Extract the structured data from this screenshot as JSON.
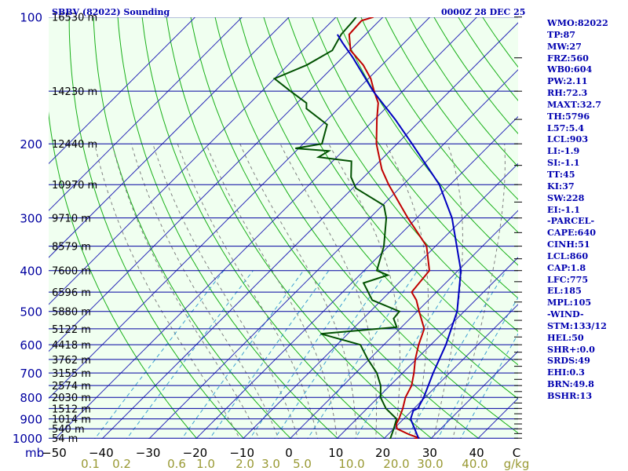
{
  "header": {
    "title": "SBBV (82022) Sounding",
    "time": "0000Z 28 DEC 25"
  },
  "sidebar": [
    "WMO:82022",
    "TP:87",
    "MW:27",
    "FRZ:560",
    "WB0:604",
    "PW:2.11",
    "RH:72.3",
    "MAXT:32.7",
    "TH:5796",
    "L57:5.4",
    "LCL:903",
    "LI:-1.9",
    "SI:-1.1",
    "TT:45",
    "KI:37",
    "SW:228",
    "EI:-1.1",
    "-PARCEL-",
    "CAPE:640",
    "CINH:51",
    "LCL:860",
    "CAP:1.8",
    "LFC:775",
    "EL:185",
    "MPL:105",
    "-WIND-",
    "STM:133/12",
    "HEL:50",
    "SHR+:0.0",
    "SRDS:49",
    "EHI:0.3",
    "BRN:49.8",
    "BSHR:13"
  ],
  "chart_data": {
    "type": "line",
    "title": "SBBV (82022) Sounding",
    "xlabel": "",
    "ylabel": "mb",
    "colors": {
      "background": "#f0fff0",
      "isobar": "#0000a0",
      "isotherm": "#2a2ab8",
      "dry_adiabat": "#18b018",
      "moist_adiabat": "#808080",
      "mixing_ratio": "#3aa0d0",
      "temperature": "#c00000",
      "dewpoint": "#005000",
      "parcel": "#0000c0",
      "axis_text": "#000000",
      "mixing_text": "#999933",
      "wind": "#000000"
    },
    "pressure_ticks": [
      "100",
      "200",
      "300",
      "400",
      "500",
      "600",
      "700",
      "800",
      "900",
      "1000"
    ],
    "pressure_tick_values": [
      100,
      200,
      300,
      400,
      500,
      600,
      700,
      800,
      900,
      1000
    ],
    "temperature_ticks": [
      "-50",
      "-40",
      "-30",
      "-20",
      "-10",
      "0",
      "10",
      "20",
      "30",
      "40",
      "C"
    ],
    "temperature_tick_values": [
      -50,
      -40,
      -30,
      -20,
      -10,
      0,
      10,
      20,
      30,
      40
    ],
    "mixing_ratio_ticks": [
      "0.1",
      "0.2",
      "0.6",
      "1.0",
      "2.0",
      "3.0",
      "5.0",
      "10.0",
      "20.0",
      "30.0",
      "40.0",
      "g/kg"
    ],
    "mixing_ratio_values": [
      0.1,
      0.2,
      0.6,
      1.0,
      2.0,
      3.0,
      5.0,
      10.0,
      20.0,
      30.0,
      40.0
    ],
    "xlim": [
      -50,
      50
    ],
    "ylim": [
      1000,
      100
    ],
    "y_scale": "log",
    "heights": [
      {
        "p": 100,
        "label": "16530 m"
      },
      {
        "p": 150,
        "label": "14230 m"
      },
      {
        "p": 200,
        "label": "12440 m"
      },
      {
        "p": 250,
        "label": "10970 m"
      },
      {
        "p": 300,
        "label": "9710 m"
      },
      {
        "p": 350,
        "label": "8579 m"
      },
      {
        "p": 400,
        "label": "7600 m"
      },
      {
        "p": 450,
        "label": "6596 m"
      },
      {
        "p": 500,
        "label": "5880 m"
      },
      {
        "p": 550,
        "label": "5122 m"
      },
      {
        "p": 600,
        "label": "4418 m"
      },
      {
        "p": 650,
        "label": "3762 m"
      },
      {
        "p": 700,
        "label": "3155 m"
      },
      {
        "p": 750,
        "label": "2574 m"
      },
      {
        "p": 800,
        "label": "2030 m"
      },
      {
        "p": 850,
        "label": "1512 m"
      },
      {
        "p": 900,
        "label": "1014 m"
      },
      {
        "p": 950,
        "label": "540 m"
      },
      {
        "p": 1000,
        "label": "54 m"
      }
    ],
    "series": [
      {
        "name": "temperature",
        "points": [
          [
            1004,
            26.5
          ],
          [
            1000,
            27.5
          ],
          [
            980,
            24.5
          ],
          [
            950,
            20.7
          ],
          [
            925,
            19.5
          ],
          [
            900,
            19
          ],
          [
            850,
            17.6
          ],
          [
            800,
            15.8
          ],
          [
            750,
            14.6
          ],
          [
            700,
            12.4
          ],
          [
            650,
            9.8
          ],
          [
            600,
            7.4
          ],
          [
            550,
            5.2
          ],
          [
            500,
            0.4
          ],
          [
            470,
            -2.6
          ],
          [
            450,
            -5.3
          ],
          [
            400,
            -6.1
          ],
          [
            350,
            -11.9
          ],
          [
            300,
            -21.9
          ],
          [
            250,
            -33.1
          ],
          [
            230,
            -37.8
          ],
          [
            200,
            -44.4
          ],
          [
            175,
            -49.5
          ],
          [
            160,
            -52.7
          ],
          [
            150,
            -56.1
          ],
          [
            140,
            -59.5
          ],
          [
            130,
            -64
          ],
          [
            120,
            -69.8
          ],
          [
            110,
            -73.5
          ],
          [
            102,
            -73.8
          ],
          [
            100,
            -72
          ]
        ]
      },
      {
        "name": "dewpoint",
        "points": [
          [
            1004,
            21.2
          ],
          [
            1000,
            21.3
          ],
          [
            950,
            20
          ],
          [
            900,
            18.5
          ],
          [
            850,
            14
          ],
          [
            800,
            10.5
          ],
          [
            750,
            8
          ],
          [
            700,
            4.5
          ],
          [
            650,
            -0.3
          ],
          [
            600,
            -5
          ],
          [
            565,
            -15.8
          ],
          [
            545,
            -1
          ],
          [
            520,
            -3.5
          ],
          [
            500,
            -3.8
          ],
          [
            470,
            -12
          ],
          [
            428,
            -17.5
          ],
          [
            410,
            -14
          ],
          [
            400,
            -17.3
          ],
          [
            350,
            -21
          ],
          [
            300,
            -26.5
          ],
          [
            280,
            -29.7
          ],
          [
            255,
            -39.3
          ],
          [
            240,
            -42.7
          ],
          [
            220,
            -46
          ],
          [
            215,
            -53.9
          ],
          [
            208,
            -53
          ],
          [
            205,
            -60.7
          ],
          [
            200,
            -56
          ],
          [
            180,
            -59
          ],
          [
            165,
            -66.8
          ],
          [
            160,
            -68
          ],
          [
            150,
            -73.9
          ],
          [
            140,
            -80
          ],
          [
            130,
            -76
          ],
          [
            120,
            -73.7
          ],
          [
            110,
            -75.2
          ],
          [
            103,
            -75.5
          ],
          [
            100,
            -75.7
          ]
        ]
      },
      {
        "name": "parcel",
        "points": [
          [
            1004,
            27.5
          ],
          [
            900,
            21.5
          ],
          [
            860,
            20.3
          ],
          [
            850,
            20.8
          ],
          [
            800,
            19.7
          ],
          [
            700,
            16.5
          ],
          [
            600,
            13.2
          ],
          [
            500,
            8.5
          ],
          [
            400,
            0.6
          ],
          [
            300,
            -12.5
          ],
          [
            250,
            -22.3
          ],
          [
            200,
            -36.8
          ],
          [
            175,
            -45.6
          ],
          [
            150,
            -56.3
          ],
          [
            125,
            -67.7
          ],
          [
            115,
            -73.2
          ],
          [
            110,
            -76
          ]
        ]
      }
    ]
  }
}
